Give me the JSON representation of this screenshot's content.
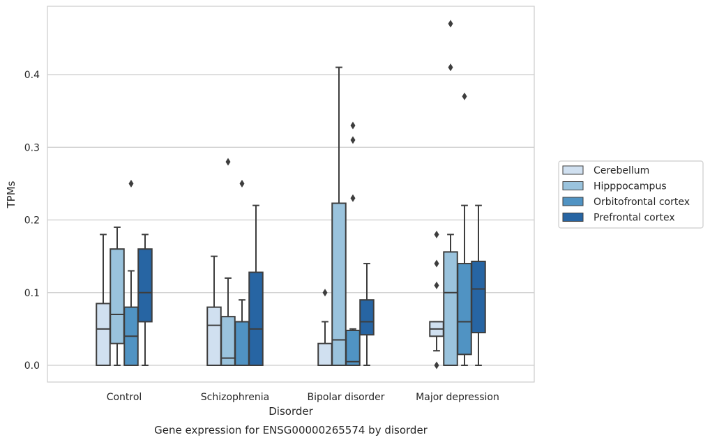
{
  "chart_data": {
    "type": "box",
    "caption": "Gene expression for ENSG00000265574 by disorder",
    "xlabel": "Disorder",
    "ylabel": "TPMs",
    "ylim": [
      -0.023,
      0.493
    ],
    "yticks": [
      0.0,
      0.1,
      0.2,
      0.3,
      0.4
    ],
    "ytick_labels": [
      "0.0",
      "0.1",
      "0.2",
      "0.3",
      "0.4"
    ],
    "grid": "horizontal",
    "legend_placement": "right",
    "categories": [
      "Control",
      "Schizophrenia",
      "Bipolar disorder",
      "Major depression"
    ],
    "series": [
      {
        "name": "Cerebellum",
        "color": "#d0e0f0",
        "boxes": [
          {
            "whislo": 0.0,
            "q1": 0.0,
            "med": 0.05,
            "q3": 0.085,
            "whishi": 0.18,
            "fliers": []
          },
          {
            "whislo": 0.0,
            "q1": 0.0,
            "med": 0.055,
            "q3": 0.08,
            "whishi": 0.15,
            "fliers": []
          },
          {
            "whislo": 0.0,
            "q1": 0.0,
            "med": 0.0,
            "q3": 0.03,
            "whishi": 0.06,
            "fliers": [
              0.1
            ]
          },
          {
            "whislo": 0.02,
            "q1": 0.04,
            "med": 0.05,
            "q3": 0.06,
            "whishi": 0.06,
            "fliers": [
              0.0,
              0.11,
              0.14,
              0.18
            ]
          }
        ]
      },
      {
        "name": "Hipppocampus",
        "color": "#9ac3dd",
        "boxes": [
          {
            "whislo": 0.0,
            "q1": 0.03,
            "med": 0.07,
            "q3": 0.16,
            "whishi": 0.19,
            "fliers": []
          },
          {
            "whislo": 0.0,
            "q1": 0.0,
            "med": 0.01,
            "q3": 0.067,
            "whishi": 0.12,
            "fliers": [
              0.28
            ]
          },
          {
            "whislo": 0.0,
            "q1": 0.0,
            "med": 0.035,
            "q3": 0.223,
            "whishi": 0.41,
            "fliers": []
          },
          {
            "whislo": 0.0,
            "q1": 0.0,
            "med": 0.1,
            "q3": 0.156,
            "whishi": 0.18,
            "fliers": [
              0.41,
              0.47
            ]
          }
        ]
      },
      {
        "name": "Orbitofrontal cortex",
        "color": "#5093c3",
        "boxes": [
          {
            "whislo": 0.0,
            "q1": 0.0,
            "med": 0.04,
            "q3": 0.08,
            "whishi": 0.13,
            "fliers": [
              0.25
            ]
          },
          {
            "whislo": 0.0,
            "q1": 0.0,
            "med": 0.06,
            "q3": 0.06,
            "whishi": 0.09,
            "fliers": [
              0.25
            ]
          },
          {
            "whislo": 0.0,
            "q1": 0.0,
            "med": 0.005,
            "q3": 0.048,
            "whishi": 0.05,
            "fliers": [
              0.23,
              0.31,
              0.33
            ]
          },
          {
            "whislo": 0.0,
            "q1": 0.015,
            "med": 0.06,
            "q3": 0.14,
            "whishi": 0.22,
            "fliers": [
              0.37
            ]
          }
        ]
      },
      {
        "name": "Prefrontal cortex",
        "color": "#2765a3",
        "boxes": [
          {
            "whislo": 0.0,
            "q1": 0.06,
            "med": 0.1,
            "q3": 0.16,
            "whishi": 0.18,
            "fliers": []
          },
          {
            "whislo": 0.0,
            "q1": 0.0,
            "med": 0.05,
            "q3": 0.128,
            "whishi": 0.22,
            "fliers": []
          },
          {
            "whislo": 0.0,
            "q1": 0.042,
            "med": 0.06,
            "q3": 0.09,
            "whishi": 0.14,
            "fliers": []
          },
          {
            "whislo": 0.0,
            "q1": 0.045,
            "med": 0.105,
            "q3": 0.143,
            "whishi": 0.22,
            "fliers": []
          }
        ]
      }
    ]
  }
}
